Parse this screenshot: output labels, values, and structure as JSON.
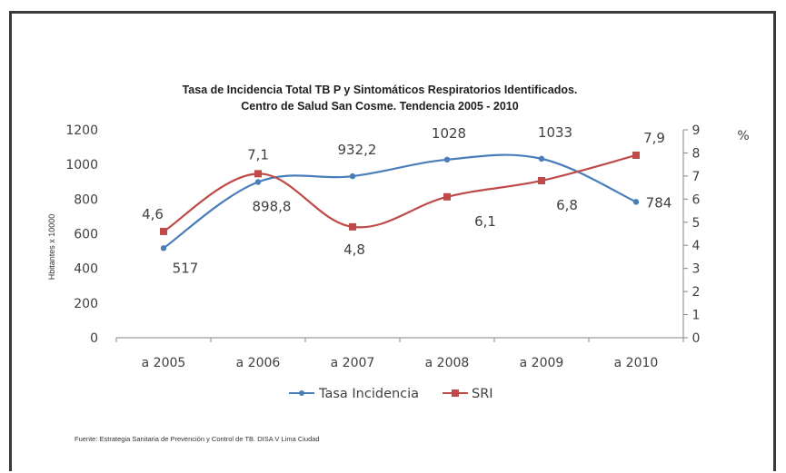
{
  "chart_data": {
    "type": "line",
    "title": "Tasa de Incidencia Total TB P y Sintomáticos Respiratorios Identificados.",
    "subtitle": "Centro de Salud San Cosme. Tendencia 2005 - 2010",
    "ylabel": "Hbitantes x 10000",
    "y2label": "%",
    "categories": [
      "a 2005",
      "a 2006",
      "a 2007",
      "a 2008",
      "a 2009",
      "a 2010"
    ],
    "ylim": [
      0,
      1200
    ],
    "yticks": [
      0,
      200,
      400,
      600,
      800,
      1000,
      1200
    ],
    "y2lim": [
      0,
      9
    ],
    "y2ticks": [
      0,
      1,
      2,
      3,
      4,
      5,
      6,
      7,
      8,
      9
    ],
    "grid": false,
    "legend_position": "bottom",
    "series": [
      {
        "name": "Tasa Incidencia",
        "axis": "left",
        "color": "#4a7ebb",
        "values": [
          517,
          898.8,
          932.2,
          1028,
          1033,
          784
        ],
        "labels": [
          "517",
          "898,8",
          "932,2",
          "1028",
          "1033",
          "784"
        ]
      },
      {
        "name": "SRI",
        "axis": "right",
        "color": "#be4b48",
        "values": [
          4.6,
          7.1,
          4.8,
          6.1,
          6.8,
          7.9
        ],
        "labels": [
          "4,6",
          "7,1",
          "4,8",
          "6,1",
          "6,8",
          "7,9"
        ]
      }
    ],
    "source": "Fuente: Estrategia Sanitaria de Prevención y Control de TB. DISA V Lima Ciudad"
  }
}
